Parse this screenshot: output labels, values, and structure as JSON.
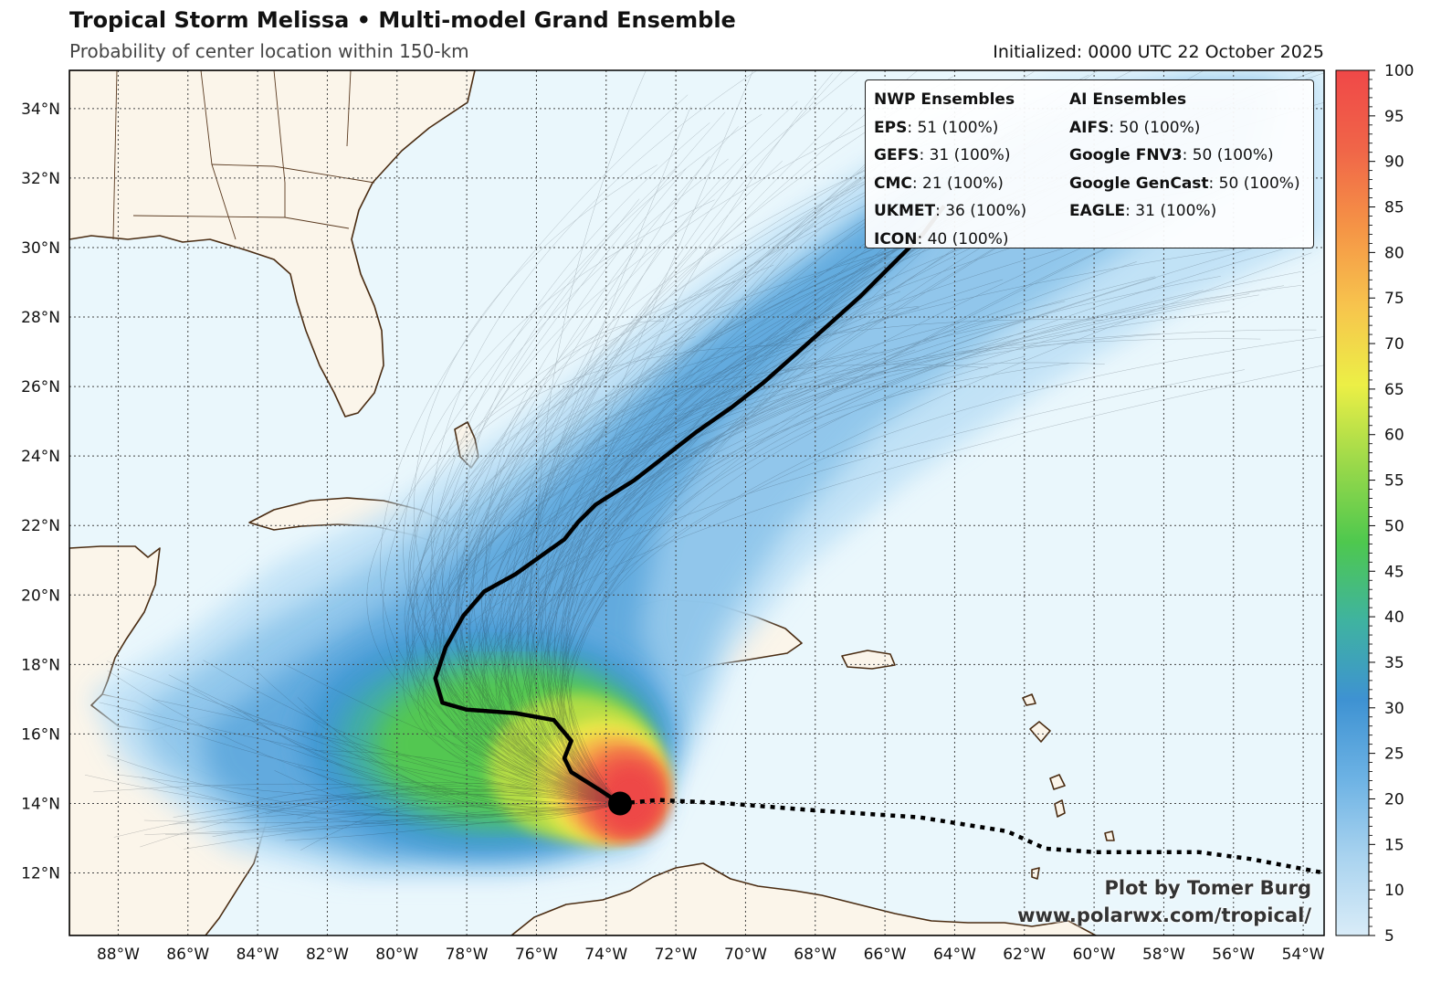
{
  "header": {
    "title": "Tropical Storm Melissa • Multi-model Grand Ensemble",
    "subtitle": "Probability of center location within 150-km",
    "initialized": "Initialized: 0000 UTC 22 October 2025"
  },
  "map": {
    "lat_labels": [
      "34°N",
      "32°N",
      "30°N",
      "28°N",
      "26°N",
      "24°N",
      "22°N",
      "20°N",
      "18°N",
      "16°N",
      "14°N",
      "12°N"
    ],
    "lon_labels": [
      "88°W",
      "86°W",
      "84°W",
      "82°W",
      "80°W",
      "78°W",
      "76°W",
      "74°W",
      "72°W",
      "70°W",
      "68°W",
      "66°W",
      "64°W",
      "62°W",
      "60°W",
      "58°W",
      "56°W",
      "54°W"
    ],
    "lon_range": [
      -89.4,
      -53.4
    ],
    "lat_range": [
      10.2,
      35.1
    ],
    "ocean_color": "#eaf7fc",
    "land_color": "#fbf5ea",
    "coast_color": "#4a2c12",
    "mean_track": [
      [
        -73.6,
        14.0
      ],
      [
        -74.2,
        14.4
      ],
      [
        -75.0,
        14.9
      ],
      [
        -75.2,
        15.3
      ],
      [
        -75.0,
        15.8
      ],
      [
        -75.5,
        16.4
      ],
      [
        -76.6,
        16.6
      ],
      [
        -78.0,
        16.7
      ],
      [
        -78.7,
        16.9
      ],
      [
        -78.9,
        17.6
      ],
      [
        -78.6,
        18.5
      ],
      [
        -78.1,
        19.4
      ],
      [
        -77.5,
        20.1
      ],
      [
        -76.6,
        20.6
      ],
      [
        -75.9,
        21.1
      ],
      [
        -75.2,
        21.6
      ],
      [
        -74.8,
        22.1
      ],
      [
        -74.3,
        22.6
      ],
      [
        -73.2,
        23.3
      ],
      [
        -72.3,
        24.0
      ],
      [
        -71.4,
        24.7
      ],
      [
        -70.4,
        25.4
      ],
      [
        -69.5,
        26.1
      ],
      [
        -68.6,
        26.9
      ],
      [
        -67.7,
        27.7
      ],
      [
        -66.7,
        28.6
      ],
      [
        -65.8,
        29.5
      ],
      [
        -64.9,
        30.4
      ],
      [
        -64.3,
        31.2
      ]
    ],
    "past_track": [
      [
        -73.6,
        14.0
      ],
      [
        -72.5,
        14.1
      ],
      [
        -70.5,
        14.0
      ],
      [
        -68.0,
        13.8
      ],
      [
        -65.0,
        13.6
      ],
      [
        -62.5,
        13.2
      ],
      [
        -61.4,
        12.7
      ],
      [
        -60.0,
        12.6
      ],
      [
        -57.0,
        12.6
      ],
      [
        -55.5,
        12.4
      ],
      [
        -53.4,
        12.0
      ]
    ],
    "storm_position": [
      -73.6,
      14.0
    ]
  },
  "legend": {
    "nwp_heading": "NWP Ensembles",
    "ai_heading": "AI Ensembles",
    "nwp": [
      {
        "name": "EPS",
        "value": ": 51 (100%)"
      },
      {
        "name": "GEFS",
        "value": ": 31 (100%)"
      },
      {
        "name": "CMC",
        "value": ": 21 (100%)"
      },
      {
        "name": "UKMET",
        "value": ": 36 (100%)"
      },
      {
        "name": "ICON",
        "value": ": 40 (100%)"
      }
    ],
    "ai": [
      {
        "name": "AIFS",
        "value": ": 50 (100%)"
      },
      {
        "name": "Google FNV3",
        "value": ": 50 (100%)"
      },
      {
        "name": "Google GenCast",
        "value": ": 50 (100%)"
      },
      {
        "name": "EAGLE",
        "value": ": 31 (100%)"
      }
    ]
  },
  "colorbar": {
    "min": 5,
    "max": 100,
    "tick_labels": [
      "100",
      "95",
      "90",
      "85",
      "80",
      "75",
      "70",
      "65",
      "60",
      "55",
      "50",
      "45",
      "40",
      "35",
      "30",
      "25",
      "20",
      "15",
      "10",
      "5"
    ],
    "stops": [
      "#d9ecf8",
      "#a9d3ef",
      "#6cb2e4",
      "#3e92d2",
      "#3fb3a0",
      "#4ec84e",
      "#9bd94a",
      "#ecef46",
      "#f7c44d",
      "#f59446",
      "#f06548",
      "#f04848"
    ]
  },
  "credit": {
    "line1": "Plot by Tomer Burg",
    "line2": "www.polarwx.com/tropical/"
  }
}
